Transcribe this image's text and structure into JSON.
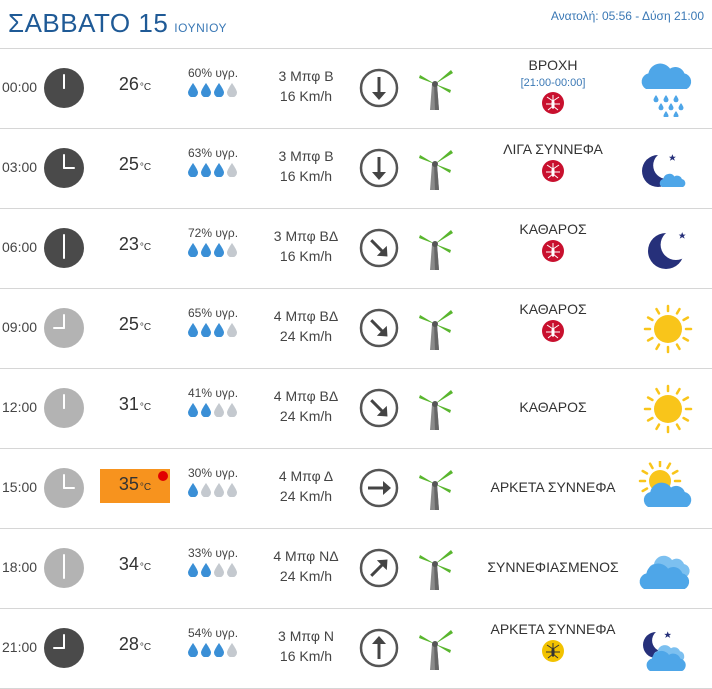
{
  "header": {
    "day": "ΣΑΒΒΑΤΟ 15",
    "month": "ΙΟΥΝΙΟΥ",
    "sun_info": "Ανατολή: 05:56  - Δύση 21:00"
  },
  "rows": [
    {
      "time": "00:00",
      "clock_style": "dark",
      "hour": 0,
      "temp": "26",
      "unit": "°C",
      "humidity": "60% υγρ.",
      "drops_filled": 3,
      "wind_force": "3 Μπφ Β",
      "wind_speed": "16 Km/h",
      "wind_dir": "down",
      "condition": "ΒΡΟΧΗ",
      "range": "[21:00-00:00]",
      "mosquito": "red",
      "icon": "rain-cloud-icon",
      "hot": false
    },
    {
      "time": "03:00",
      "clock_style": "dark",
      "hour": 3,
      "temp": "25",
      "unit": "°C",
      "humidity": "63% υγρ.",
      "drops_filled": 3,
      "wind_force": "3 Μπφ Β",
      "wind_speed": "16 Km/h",
      "wind_dir": "down",
      "condition": "ΛΙΓΑ ΣΥΝΝΕΦΑ",
      "range": "",
      "mosquito": "red",
      "icon": "moon-cloud-icon",
      "hot": false
    },
    {
      "time": "06:00",
      "clock_style": "dark",
      "hour": 6,
      "temp": "23",
      "unit": "°C",
      "humidity": "72% υγρ.",
      "drops_filled": 3,
      "wind_force": "3 Μπφ ΒΔ",
      "wind_speed": "16 Km/h",
      "wind_dir": "down-right",
      "condition": "ΚΑΘΑΡΟΣ",
      "range": "",
      "mosquito": "red",
      "icon": "moon-icon",
      "hot": false
    },
    {
      "time": "09:00",
      "clock_style": "light",
      "hour": 9,
      "temp": "25",
      "unit": "°C",
      "humidity": "65% υγρ.",
      "drops_filled": 3,
      "wind_force": "4 Μπφ ΒΔ",
      "wind_speed": "24 Km/h",
      "wind_dir": "down-right",
      "condition": "ΚΑΘΑΡΟΣ",
      "range": "",
      "mosquito": "red",
      "icon": "sun-icon",
      "hot": false
    },
    {
      "time": "12:00",
      "clock_style": "light",
      "hour": 12,
      "temp": "31",
      "unit": "°C",
      "humidity": "41% υγρ.",
      "drops_filled": 2,
      "wind_force": "4 Μπφ ΒΔ",
      "wind_speed": "24 Km/h",
      "wind_dir": "down-right",
      "condition": "ΚΑΘΑΡΟΣ",
      "range": "",
      "mosquito": "none",
      "icon": "sun-icon",
      "hot": false
    },
    {
      "time": "15:00",
      "clock_style": "light",
      "hour": 15,
      "temp": "35",
      "unit": "°C",
      "humidity": "30% υγρ.",
      "drops_filled": 1,
      "wind_force": "4 Μπφ Δ",
      "wind_speed": "24 Km/h",
      "wind_dir": "right",
      "condition": "ΑΡΚΕΤΑ ΣΥΝΝΕΦΑ",
      "range": "",
      "mosquito": "none",
      "icon": "sun-cloud-icon",
      "hot": true
    },
    {
      "time": "18:00",
      "clock_style": "light",
      "hour": 18,
      "temp": "34",
      "unit": "°C",
      "humidity": "33% υγρ.",
      "drops_filled": 2,
      "wind_force": "4 Μπφ ΝΔ",
      "wind_speed": "24 Km/h",
      "wind_dir": "up-right",
      "condition": "ΣΥΝΝΕΦΙΑΣΜΕΝΟΣ",
      "range": "",
      "mosquito": "none",
      "icon": "clouds-icon",
      "hot": false
    },
    {
      "time": "21:00",
      "clock_style": "dark",
      "hour": 21,
      "temp": "28",
      "unit": "°C",
      "humidity": "54% υγρ.",
      "drops_filled": 3,
      "wind_force": "3 Μπφ Ν",
      "wind_speed": "16 Km/h",
      "wind_dir": "up",
      "condition": "ΑΡΚΕΤΑ ΣΥΝΝΕΦΑ",
      "range": "",
      "mosquito": "yellow",
      "icon": "moon-clouds-icon",
      "hot": false
    }
  ],
  "colors": {
    "title": "#1f5a96",
    "accent": "#3a78b5",
    "clock_dark": "#4a4a4a",
    "clock_light": "#b3b3b3",
    "drop_filled": "#3a8fd6",
    "drop_empty": "#c4c9cf",
    "hot": "#f7931e",
    "mosquito_red": "#c8102e",
    "mosquito_yellow": "#f2c200",
    "sun": "#f9c51a",
    "cloud": "#4ea6e8",
    "moon": "#26307a"
  }
}
